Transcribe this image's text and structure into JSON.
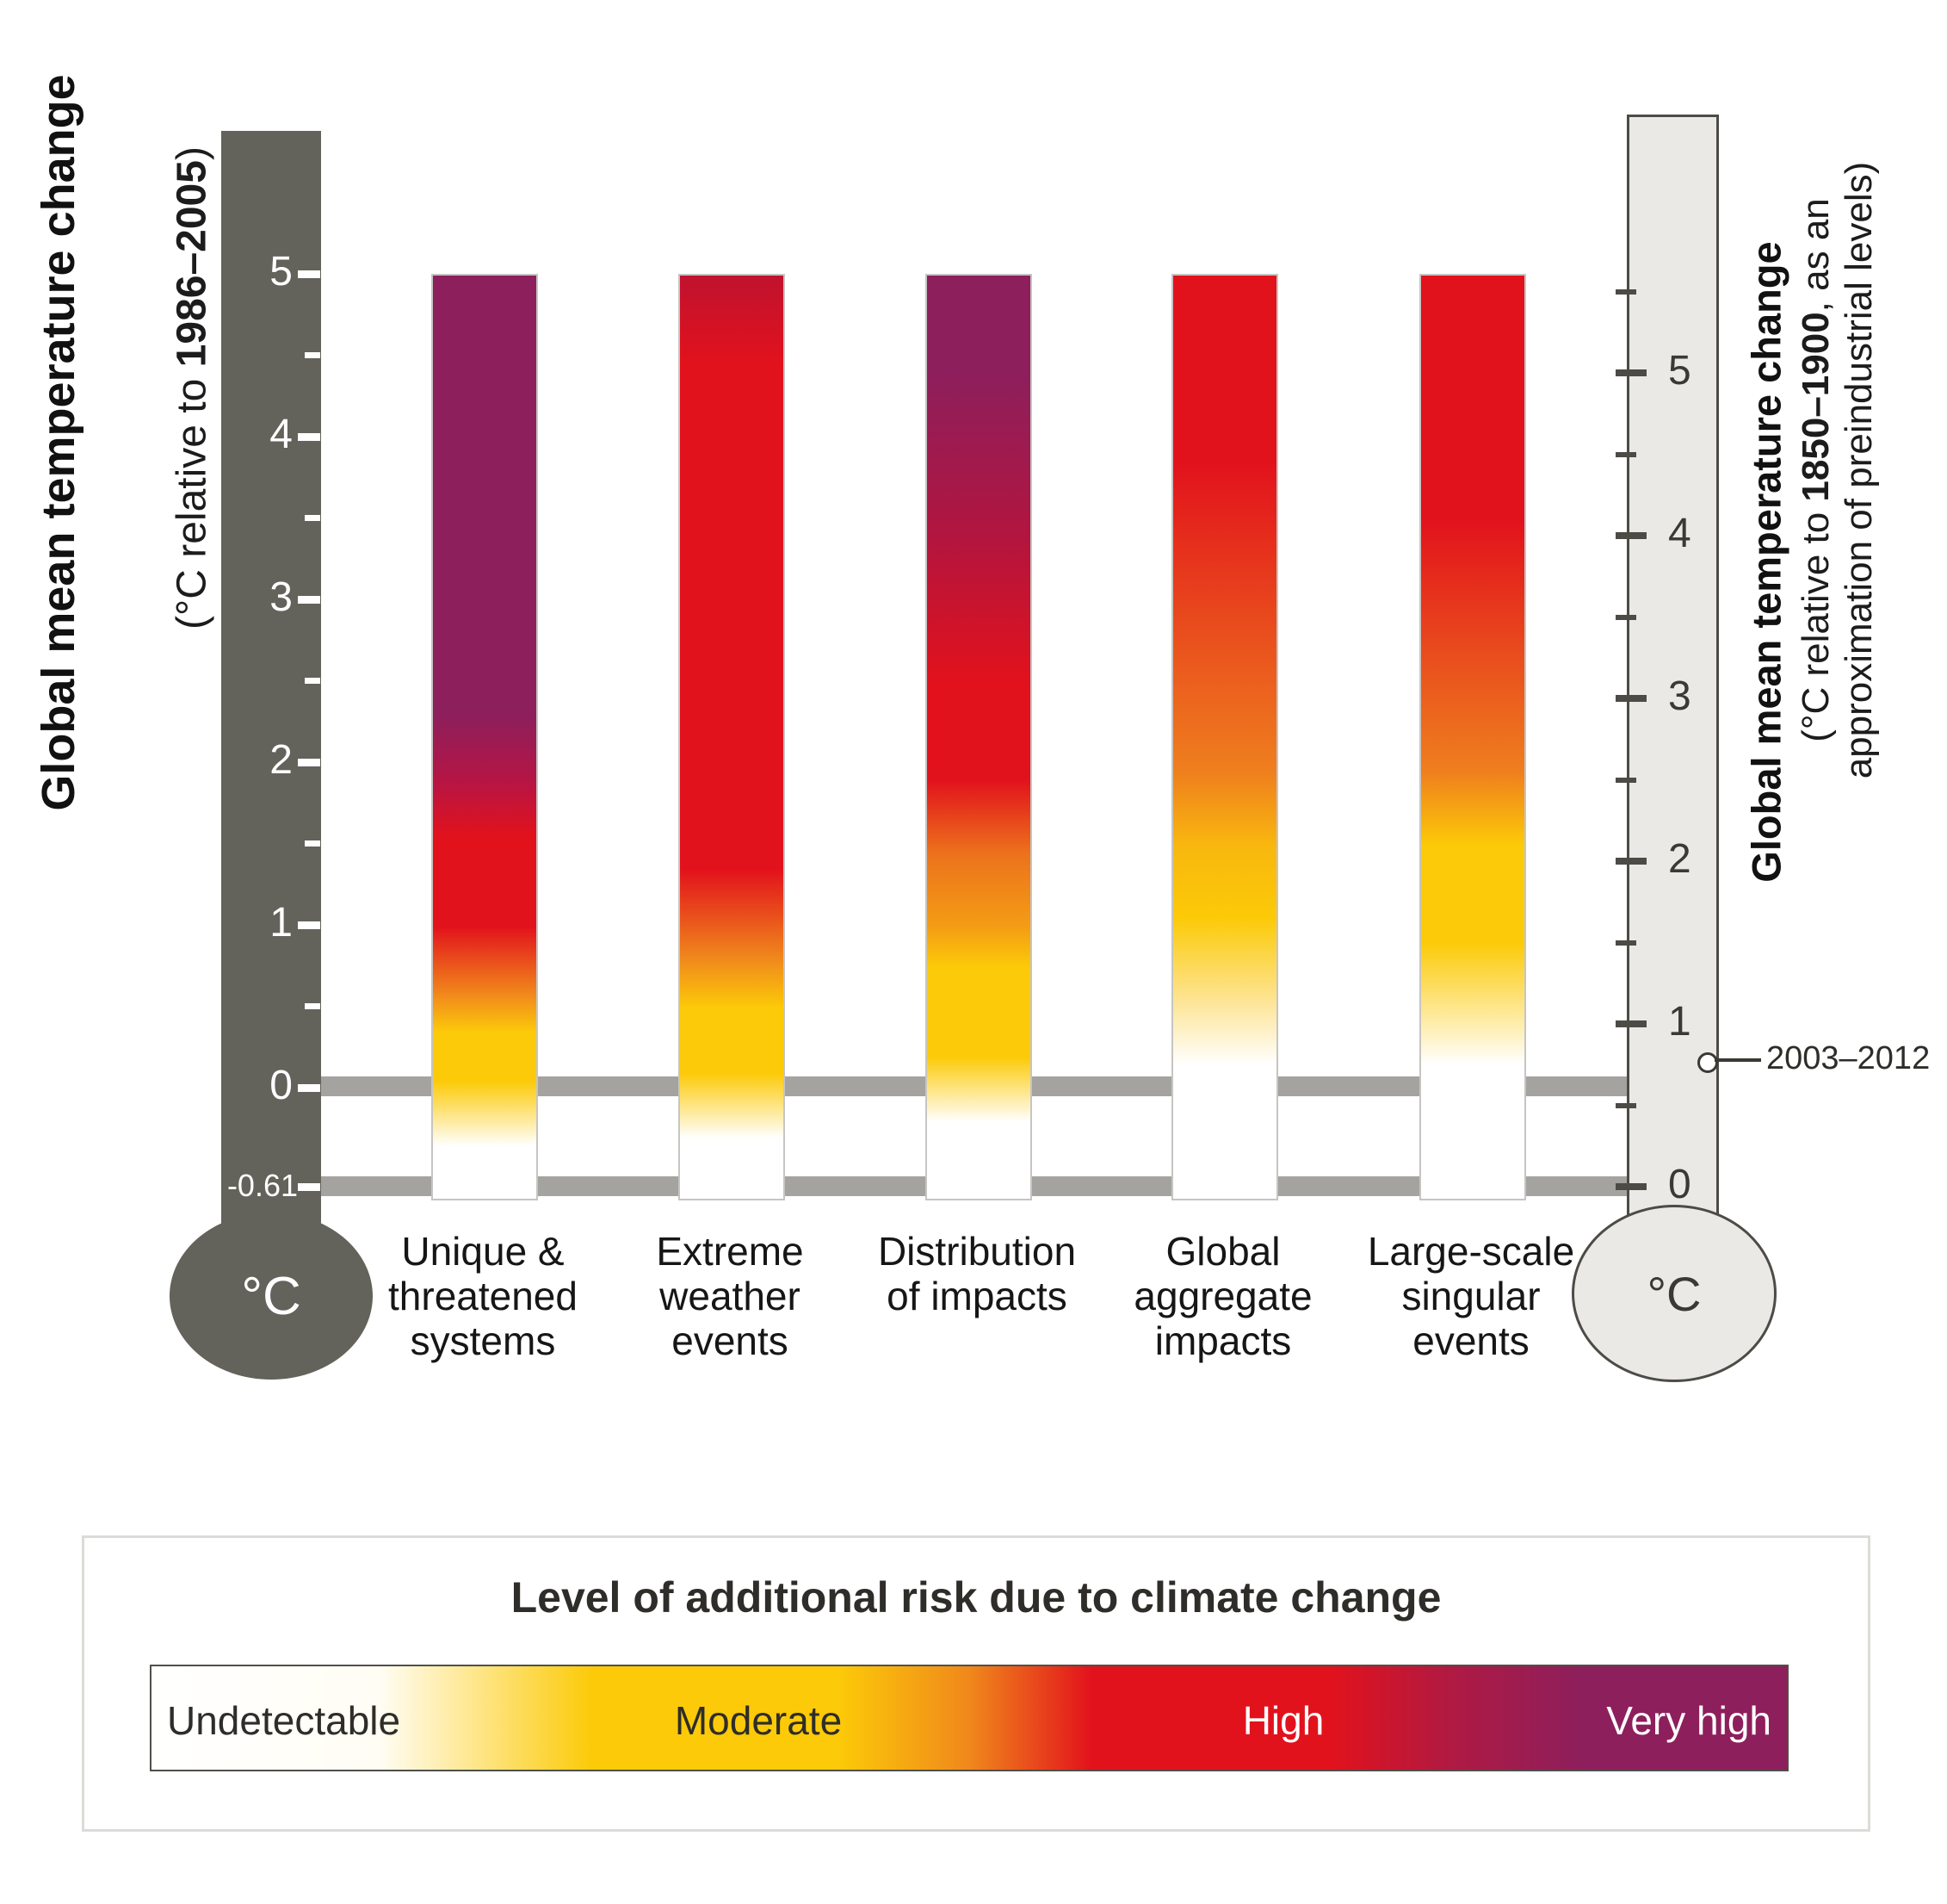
{
  "axis_left": {
    "title": "Global mean temperature change",
    "subtitle_pre": "(°C relative to ",
    "subtitle_bold": "1986–2005",
    "subtitle_post": ")",
    "unit": "°C",
    "major_ticks": [
      {
        "label": "5",
        "value": 5
      },
      {
        "label": "4",
        "value": 4
      },
      {
        "label": "3",
        "value": 3
      },
      {
        "label": "2",
        "value": 2
      },
      {
        "label": "1",
        "value": 1
      },
      {
        "label": "0",
        "value": 0
      }
    ],
    "minor_ticks": [
      4.5,
      3.5,
      2.5,
      1.5,
      0.5
    ],
    "baseline": {
      "label": "-0.61",
      "value": -0.61
    }
  },
  "axis_right": {
    "title": "Global mean temperature change",
    "subtitle_pre": "(°C relative to ",
    "subtitle_bold": "1850–1900",
    "subtitle_post": ", as an",
    "subtitle_line2": "approximation of preindustrial levels)",
    "unit": "°C",
    "major_ticks": [
      {
        "label": "5",
        "value": 5
      },
      {
        "label": "4",
        "value": 4
      },
      {
        "label": "3",
        "value": 3
      },
      {
        "label": "2",
        "value": 2
      },
      {
        "label": "1",
        "value": 1
      },
      {
        "label": "0",
        "value": 0
      }
    ],
    "minor_ticks": [
      5.5,
      4.5,
      3.5,
      2.5,
      1.5,
      0.5
    ],
    "marker": {
      "label": "2003–2012",
      "value_right": 0.78
    }
  },
  "legend": {
    "title": "Level of additional risk due to climate change",
    "labels": [
      "Undetectable",
      "Moderate",
      "High",
      "Very high"
    ],
    "gradient": [
      [
        0.0,
        "#ffffff"
      ],
      [
        0.14,
        "#fffdf4"
      ],
      [
        0.27,
        "#fcca08"
      ],
      [
        0.42,
        "#fcca08"
      ],
      [
        0.5,
        "#f0881c"
      ],
      [
        0.575,
        "#e2121c"
      ],
      [
        0.72,
        "#e2121c"
      ],
      [
        0.8,
        "#ad1a45"
      ],
      [
        0.875,
        "#8d1f5c"
      ],
      [
        1.0,
        "#8d1f5c"
      ]
    ]
  },
  "chart_data": {
    "type": "heatmap",
    "title": "Level of additional risk due to climate change",
    "ylabel_left": "Global mean temperature change (°C relative to 1986–2005)",
    "ylabel_right": "Global mean temperature change (°C relative to 1850–1900, as an approximation of preindustrial levels)",
    "y_range_left": [
      -0.61,
      5
    ],
    "y_range_right": [
      0,
      5.61
    ],
    "observed_marker": {
      "label": "2003–2012",
      "value_right": 0.78
    },
    "risk_levels": [
      {
        "name": "Undetectable",
        "color": "#ffffff"
      },
      {
        "name": "Moderate",
        "color": "#fcca08"
      },
      {
        "name": "High",
        "color": "#e2121c"
      },
      {
        "name": "Very high",
        "color": "#8d1f5c"
      }
    ],
    "bars": [
      {
        "category": "Unique & threatened systems",
        "label_lines": [
          "Unique &",
          "threatened",
          "systems"
        ],
        "stops": [
          [
            5,
            "#8d1f5c"
          ],
          [
            2.3,
            "#8d1f5c"
          ],
          [
            1.9,
            "#b51545"
          ],
          [
            1.55,
            "#e2121c"
          ],
          [
            1.0,
            "#e2121c"
          ],
          [
            0.55,
            "#f2921b"
          ],
          [
            0.35,
            "#fcca08"
          ],
          [
            0.05,
            "#fcca08"
          ],
          [
            -0.35,
            "#ffffff"
          ]
        ]
      },
      {
        "category": "Extreme weather events",
        "label_lines": [
          "Extreme",
          "weather",
          "events"
        ],
        "stops": [
          [
            5,
            "#c0122f"
          ],
          [
            4.45,
            "#e2121c"
          ],
          [
            1.35,
            "#e2121c"
          ],
          [
            0.8,
            "#f0891c"
          ],
          [
            0.5,
            "#fcca08"
          ],
          [
            0.1,
            "#fcca08"
          ],
          [
            -0.3,
            "#ffffff"
          ]
        ]
      },
      {
        "category": "Distribution of impacts",
        "label_lines": [
          "Distribution",
          "of impacts"
        ],
        "stops": [
          [
            5,
            "#8d1f5c"
          ],
          [
            4.4,
            "#8d1f5c"
          ],
          [
            3.4,
            "#b2153f"
          ],
          [
            2.5,
            "#e2121c"
          ],
          [
            1.9,
            "#e2121c"
          ],
          [
            1.45,
            "#ec721c"
          ],
          [
            1.0,
            "#f49c15"
          ],
          [
            0.75,
            "#fcca08"
          ],
          [
            0.2,
            "#fcca08"
          ],
          [
            -0.2,
            "#ffffff"
          ]
        ]
      },
      {
        "category": "Global aggregate impacts",
        "label_lines": [
          "Global",
          "aggregate",
          "impacts"
        ],
        "stops": [
          [
            5,
            "#e2121c"
          ],
          [
            3.85,
            "#e2121c"
          ],
          [
            1.95,
            "#ef7f1e"
          ],
          [
            1.5,
            "#f8b70f"
          ],
          [
            1.05,
            "#fcca08"
          ],
          [
            0.55,
            "#fde493"
          ],
          [
            0.15,
            "#ffffff"
          ]
        ]
      },
      {
        "category": "Large-scale singular events",
        "label_lines": [
          "Large-scale",
          "singular",
          "events"
        ],
        "stops": [
          [
            5,
            "#e2121c"
          ],
          [
            3.5,
            "#e2121c"
          ],
          [
            1.95,
            "#ef7f1e"
          ],
          [
            1.5,
            "#fcca08"
          ],
          [
            0.9,
            "#fcca08"
          ],
          [
            0.15,
            "#ffffff"
          ]
        ]
      }
    ]
  }
}
